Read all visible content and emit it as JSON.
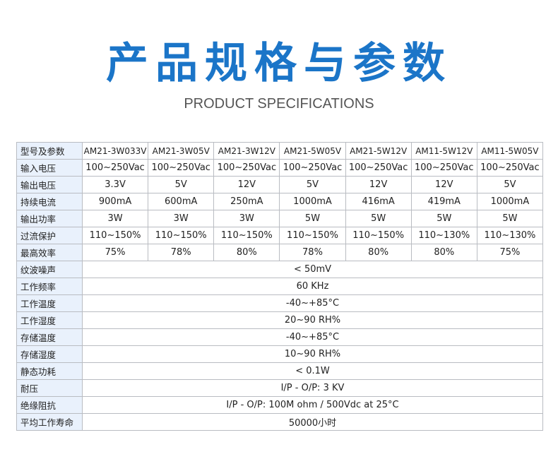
{
  "title": "产品规格与参数",
  "subtitle": "PRODUCT SPECIFICATIONS",
  "colors": {
    "title": "#1b75c8",
    "label_bg": "#e9f1fc",
    "border": "#b9bcc2"
  },
  "table": {
    "header": {
      "label": "型号及参数",
      "models": [
        "AM21-3W033V",
        "AM21-3W05V",
        "AM21-3W12V",
        "AM21-5W05V",
        "AM21-5W12V",
        "AM11-5W12V",
        "AM11-5W05V"
      ]
    },
    "rows": [
      {
        "label": "输入电压",
        "values": [
          "100~250Vac",
          "100~250Vac",
          "100~250Vac",
          "100~250Vac",
          "100~250Vac",
          "100~250Vac",
          "100~250Vac"
        ]
      },
      {
        "label": "输出电压",
        "values": [
          "3.3V",
          "5V",
          "12V",
          "5V",
          "12V",
          "12V",
          "5V"
        ]
      },
      {
        "label": "持续电流",
        "values": [
          "900mA",
          "600mA",
          "250mA",
          "1000mA",
          "416mA",
          "419mA",
          "1000mA"
        ]
      },
      {
        "label": "输出功率",
        "values": [
          "3W",
          "3W",
          "3W",
          "5W",
          "5W",
          "5W",
          "5W"
        ]
      },
      {
        "label": "过流保护",
        "values": [
          "110~150%",
          "110~150%",
          "110~150%",
          "110~150%",
          "110~150%",
          "110~130%",
          "110~130%"
        ]
      },
      {
        "label": "最高效率",
        "values": [
          "75%",
          "78%",
          "80%",
          "78%",
          "80%",
          "80%",
          "75%"
        ]
      }
    ],
    "shared_rows": [
      {
        "label": "纹波噪声",
        "value": "< 50mV"
      },
      {
        "label": "工作频率",
        "value": "60 KHz"
      },
      {
        "label": "工作温度",
        "value": "-40~+85°C"
      },
      {
        "label": "工作湿度",
        "value": "20~90 RH%"
      },
      {
        "label": "存储温度",
        "value": "-40~+85°C"
      },
      {
        "label": "存储湿度",
        "value": "10~90 RH%"
      },
      {
        "label": "静态功耗",
        "value": "< 0.1W"
      },
      {
        "label": "耐压",
        "value": "I/P - O/P: 3 KV"
      },
      {
        "label": "绝缘阻抗",
        "value": "I/P - O/P: 100M ohm / 500Vdc at 25°C"
      },
      {
        "label": "平均工作寿命",
        "value": "50000小时"
      }
    ]
  }
}
